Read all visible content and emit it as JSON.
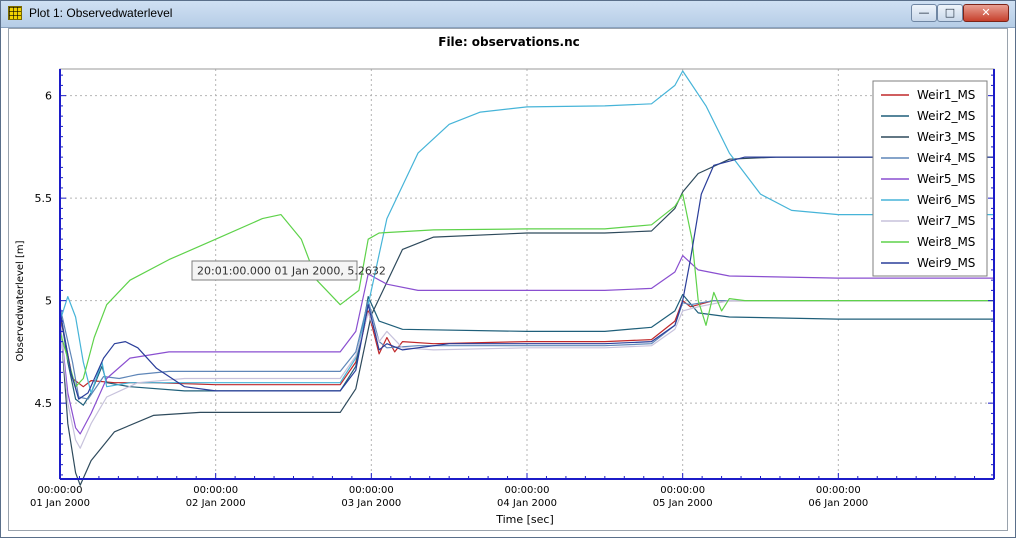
{
  "window": {
    "title": "Plot 1: Observedwaterlevel",
    "controls": {
      "minimize": "—",
      "maximize": "□",
      "close": "✕"
    }
  },
  "icons": {
    "app": "plot-grid-icon"
  },
  "tooltip": {
    "text": "20:01:00.000 01 Jan 2000, 5.2632"
  },
  "chart_data": {
    "type": "line",
    "title": "File: observations.nc",
    "xlabel": "Time [sec]",
    "ylabel": "Observedwaterlevel [m]",
    "xlim": [
      0,
      6.0
    ],
    "ylim": [
      4.13,
      6.13
    ],
    "yticks": [
      4.5,
      5,
      5.5,
      6
    ],
    "ytick_labels": [
      "4.5",
      "5",
      "5.5",
      "6"
    ],
    "xticks": [
      0,
      1,
      2,
      3,
      4,
      5
    ],
    "xtick_labels": [
      [
        "00:00:00",
        "01 Jan 2000"
      ],
      [
        "00:00:00",
        "02 Jan 2000"
      ],
      [
        "00:00:00",
        "03 Jan 2000"
      ],
      [
        "00:00:00",
        "04 Jan 2000"
      ],
      [
        "00:00:00",
        "05 Jan 2000"
      ],
      [
        "00:00:00",
        "06 Jan 2000"
      ]
    ],
    "grid": true,
    "legend_position": "top-right",
    "series": [
      {
        "name": "Weir1_MS",
        "color": "#c0282a",
        "points": [
          [
            0,
            4.93
          ],
          [
            0.08,
            4.62
          ],
          [
            0.15,
            4.58
          ],
          [
            0.2,
            4.61
          ],
          [
            0.35,
            4.6
          ],
          [
            0.6,
            4.6
          ],
          [
            1.0,
            4.59
          ],
          [
            1.5,
            4.59
          ],
          [
            1.8,
            4.59
          ],
          [
            1.9,
            4.7
          ],
          [
            1.98,
            4.95
          ],
          [
            2.05,
            4.74
          ],
          [
            2.1,
            4.82
          ],
          [
            2.15,
            4.75
          ],
          [
            2.2,
            4.8
          ],
          [
            2.4,
            4.79
          ],
          [
            3.0,
            4.8
          ],
          [
            3.5,
            4.8
          ],
          [
            3.8,
            4.81
          ],
          [
            3.95,
            4.9
          ],
          [
            4.0,
            5.0
          ],
          [
            4.05,
            4.97
          ],
          [
            4.2,
            5.0
          ],
          [
            5.0,
            5.0
          ],
          [
            6.0,
            5.0
          ]
        ]
      },
      {
        "name": "Weir2_MS",
        "color": "#1f5f7a",
        "points": [
          [
            0,
            4.96
          ],
          [
            0.05,
            4.7
          ],
          [
            0.1,
            4.52
          ],
          [
            0.15,
            4.49
          ],
          [
            0.2,
            4.55
          ],
          [
            0.27,
            4.68
          ],
          [
            0.3,
            4.6
          ],
          [
            0.45,
            4.58
          ],
          [
            0.8,
            4.56
          ],
          [
            1.2,
            4.56
          ],
          [
            1.5,
            4.56
          ],
          [
            1.8,
            4.56
          ],
          [
            1.9,
            4.68
          ],
          [
            1.98,
            5.02
          ],
          [
            2.05,
            4.9
          ],
          [
            2.2,
            4.86
          ],
          [
            3.0,
            4.85
          ],
          [
            3.5,
            4.85
          ],
          [
            3.8,
            4.87
          ],
          [
            3.95,
            4.95
          ],
          [
            4.0,
            5.03
          ],
          [
            4.1,
            4.94
          ],
          [
            4.3,
            4.92
          ],
          [
            5.0,
            4.91
          ],
          [
            6.0,
            4.91
          ]
        ]
      },
      {
        "name": "Weir3_MS",
        "color": "#2e4a5c",
        "points": [
          [
            0,
            4.93
          ],
          [
            0.05,
            4.4
          ],
          [
            0.1,
            4.16
          ],
          [
            0.13,
            4.1
          ],
          [
            0.2,
            4.22
          ],
          [
            0.35,
            4.36
          ],
          [
            0.6,
            4.44
          ],
          [
            0.9,
            4.455
          ],
          [
            1.2,
            4.455
          ],
          [
            1.5,
            4.455
          ],
          [
            1.8,
            4.455
          ],
          [
            1.9,
            4.57
          ],
          [
            2.0,
            4.93
          ],
          [
            2.2,
            5.25
          ],
          [
            2.4,
            5.31
          ],
          [
            3.0,
            5.33
          ],
          [
            3.5,
            5.33
          ],
          [
            3.8,
            5.34
          ],
          [
            3.95,
            5.45
          ],
          [
            4.0,
            5.53
          ],
          [
            4.1,
            5.62
          ],
          [
            4.3,
            5.69
          ],
          [
            4.6,
            5.7
          ],
          [
            5.0,
            5.7
          ],
          [
            6.0,
            5.7
          ]
        ]
      },
      {
        "name": "Weir4_MS",
        "color": "#5f86b8",
        "points": [
          [
            0,
            4.97
          ],
          [
            0.08,
            4.7
          ],
          [
            0.12,
            4.53
          ],
          [
            0.18,
            4.52
          ],
          [
            0.28,
            4.63
          ],
          [
            0.38,
            4.62
          ],
          [
            0.5,
            4.64
          ],
          [
            0.7,
            4.655
          ],
          [
            1.0,
            4.655
          ],
          [
            1.5,
            4.655
          ],
          [
            1.8,
            4.655
          ],
          [
            1.9,
            4.75
          ],
          [
            1.98,
            5.0
          ],
          [
            2.05,
            4.8
          ],
          [
            2.1,
            4.77
          ],
          [
            2.3,
            4.78
          ],
          [
            3.0,
            4.78
          ],
          [
            3.5,
            4.78
          ],
          [
            3.8,
            4.79
          ],
          [
            3.95,
            4.88
          ],
          [
            4.0,
            4.99
          ],
          [
            4.05,
            4.98
          ],
          [
            4.2,
            5.0
          ],
          [
            5.0,
            5.0
          ],
          [
            6.0,
            5.0
          ]
        ]
      },
      {
        "name": "Weir5_MS",
        "color": "#8a4fd0",
        "points": [
          [
            0,
            4.9
          ],
          [
            0.05,
            4.55
          ],
          [
            0.1,
            4.38
          ],
          [
            0.13,
            4.35
          ],
          [
            0.2,
            4.45
          ],
          [
            0.3,
            4.62
          ],
          [
            0.45,
            4.72
          ],
          [
            0.7,
            4.75
          ],
          [
            1.2,
            4.75
          ],
          [
            1.5,
            4.75
          ],
          [
            1.8,
            4.75
          ],
          [
            1.9,
            4.85
          ],
          [
            1.98,
            5.13
          ],
          [
            2.1,
            5.08
          ],
          [
            2.3,
            5.05
          ],
          [
            3.0,
            5.05
          ],
          [
            3.5,
            5.05
          ],
          [
            3.8,
            5.06
          ],
          [
            3.95,
            5.14
          ],
          [
            4.0,
            5.22
          ],
          [
            4.1,
            5.15
          ],
          [
            4.3,
            5.12
          ],
          [
            5.0,
            5.11
          ],
          [
            6.0,
            5.11
          ]
        ]
      },
      {
        "name": "Weir6_MS",
        "color": "#46b4d8",
        "points": [
          [
            0,
            4.9
          ],
          [
            0.05,
            5.02
          ],
          [
            0.1,
            4.92
          ],
          [
            0.15,
            4.7
          ],
          [
            0.2,
            4.55
          ],
          [
            0.27,
            4.7
          ],
          [
            0.3,
            4.58
          ],
          [
            0.45,
            4.6
          ],
          [
            0.8,
            4.6
          ],
          [
            1.2,
            4.6
          ],
          [
            1.5,
            4.6
          ],
          [
            1.8,
            4.6
          ],
          [
            1.9,
            4.72
          ],
          [
            1.98,
            4.98
          ],
          [
            2.1,
            5.4
          ],
          [
            2.3,
            5.72
          ],
          [
            2.5,
            5.86
          ],
          [
            2.7,
            5.92
          ],
          [
            3.0,
            5.945
          ],
          [
            3.5,
            5.95
          ],
          [
            3.8,
            5.96
          ],
          [
            3.95,
            6.05
          ],
          [
            4.0,
            6.12
          ],
          [
            4.15,
            5.95
          ],
          [
            4.3,
            5.72
          ],
          [
            4.5,
            5.52
          ],
          [
            4.7,
            5.44
          ],
          [
            5.0,
            5.42
          ],
          [
            6.0,
            5.42
          ]
        ]
      },
      {
        "name": "Weir7_MS",
        "color": "#c7c2dc",
        "points": [
          [
            0,
            4.9
          ],
          [
            0.05,
            4.5
          ],
          [
            0.1,
            4.32
          ],
          [
            0.13,
            4.28
          ],
          [
            0.2,
            4.4
          ],
          [
            0.3,
            4.53
          ],
          [
            0.5,
            4.6
          ],
          [
            0.8,
            4.62
          ],
          [
            1.2,
            4.62
          ],
          [
            1.5,
            4.62
          ],
          [
            1.8,
            4.62
          ],
          [
            1.9,
            4.73
          ],
          [
            1.98,
            4.94
          ],
          [
            2.05,
            4.8
          ],
          [
            2.1,
            4.85
          ],
          [
            2.2,
            4.77
          ],
          [
            2.4,
            4.76
          ],
          [
            3.0,
            4.77
          ],
          [
            3.5,
            4.77
          ],
          [
            3.8,
            4.78
          ],
          [
            3.95,
            4.86
          ],
          [
            4.0,
            4.95
          ],
          [
            4.1,
            4.97
          ],
          [
            4.3,
            5.0
          ],
          [
            5.0,
            5.0
          ],
          [
            6.0,
            5.0
          ]
        ]
      },
      {
        "name": "Weir8_MS",
        "color": "#5ed24a",
        "points": [
          [
            0,
            4.85
          ],
          [
            0.1,
            4.58
          ],
          [
            0.15,
            4.62
          ],
          [
            0.22,
            4.82
          ],
          [
            0.3,
            4.98
          ],
          [
            0.45,
            5.1
          ],
          [
            0.7,
            5.2
          ],
          [
            1.0,
            5.3
          ],
          [
            1.3,
            5.4
          ],
          [
            1.42,
            5.42
          ],
          [
            1.55,
            5.3
          ],
          [
            1.65,
            5.1
          ],
          [
            1.8,
            4.98
          ],
          [
            1.92,
            5.05
          ],
          [
            1.98,
            5.3
          ],
          [
            2.05,
            5.33
          ],
          [
            2.4,
            5.345
          ],
          [
            3.0,
            5.35
          ],
          [
            3.5,
            5.35
          ],
          [
            3.8,
            5.37
          ],
          [
            3.95,
            5.46
          ],
          [
            4.0,
            5.52
          ],
          [
            4.06,
            5.3
          ],
          [
            4.1,
            5.0
          ],
          [
            4.15,
            4.88
          ],
          [
            4.2,
            5.04
          ],
          [
            4.25,
            4.95
          ],
          [
            4.3,
            5.01
          ],
          [
            4.4,
            5.0
          ],
          [
            5.0,
            5.0
          ],
          [
            6.0,
            5.0
          ]
        ]
      },
      {
        "name": "Weir9_MS",
        "color": "#2a3e9a",
        "points": [
          [
            0,
            4.95
          ],
          [
            0.07,
            4.65
          ],
          [
            0.12,
            4.52
          ],
          [
            0.18,
            4.55
          ],
          [
            0.28,
            4.72
          ],
          [
            0.35,
            4.79
          ],
          [
            0.42,
            4.8
          ],
          [
            0.5,
            4.77
          ],
          [
            0.62,
            4.67
          ],
          [
            0.8,
            4.58
          ],
          [
            1.0,
            4.56
          ],
          [
            1.5,
            4.56
          ],
          [
            1.8,
            4.56
          ],
          [
            1.9,
            4.66
          ],
          [
            1.98,
            4.98
          ],
          [
            2.05,
            4.76
          ],
          [
            2.1,
            4.79
          ],
          [
            2.2,
            4.76
          ],
          [
            2.5,
            4.79
          ],
          [
            3.0,
            4.79
          ],
          [
            3.5,
            4.79
          ],
          [
            3.8,
            4.8
          ],
          [
            3.95,
            4.88
          ],
          [
            4.0,
            5.0
          ],
          [
            4.05,
            5.2
          ],
          [
            4.12,
            5.52
          ],
          [
            4.2,
            5.66
          ],
          [
            4.4,
            5.7
          ],
          [
            5.0,
            5.7
          ],
          [
            6.0,
            5.7
          ]
        ]
      }
    ]
  }
}
